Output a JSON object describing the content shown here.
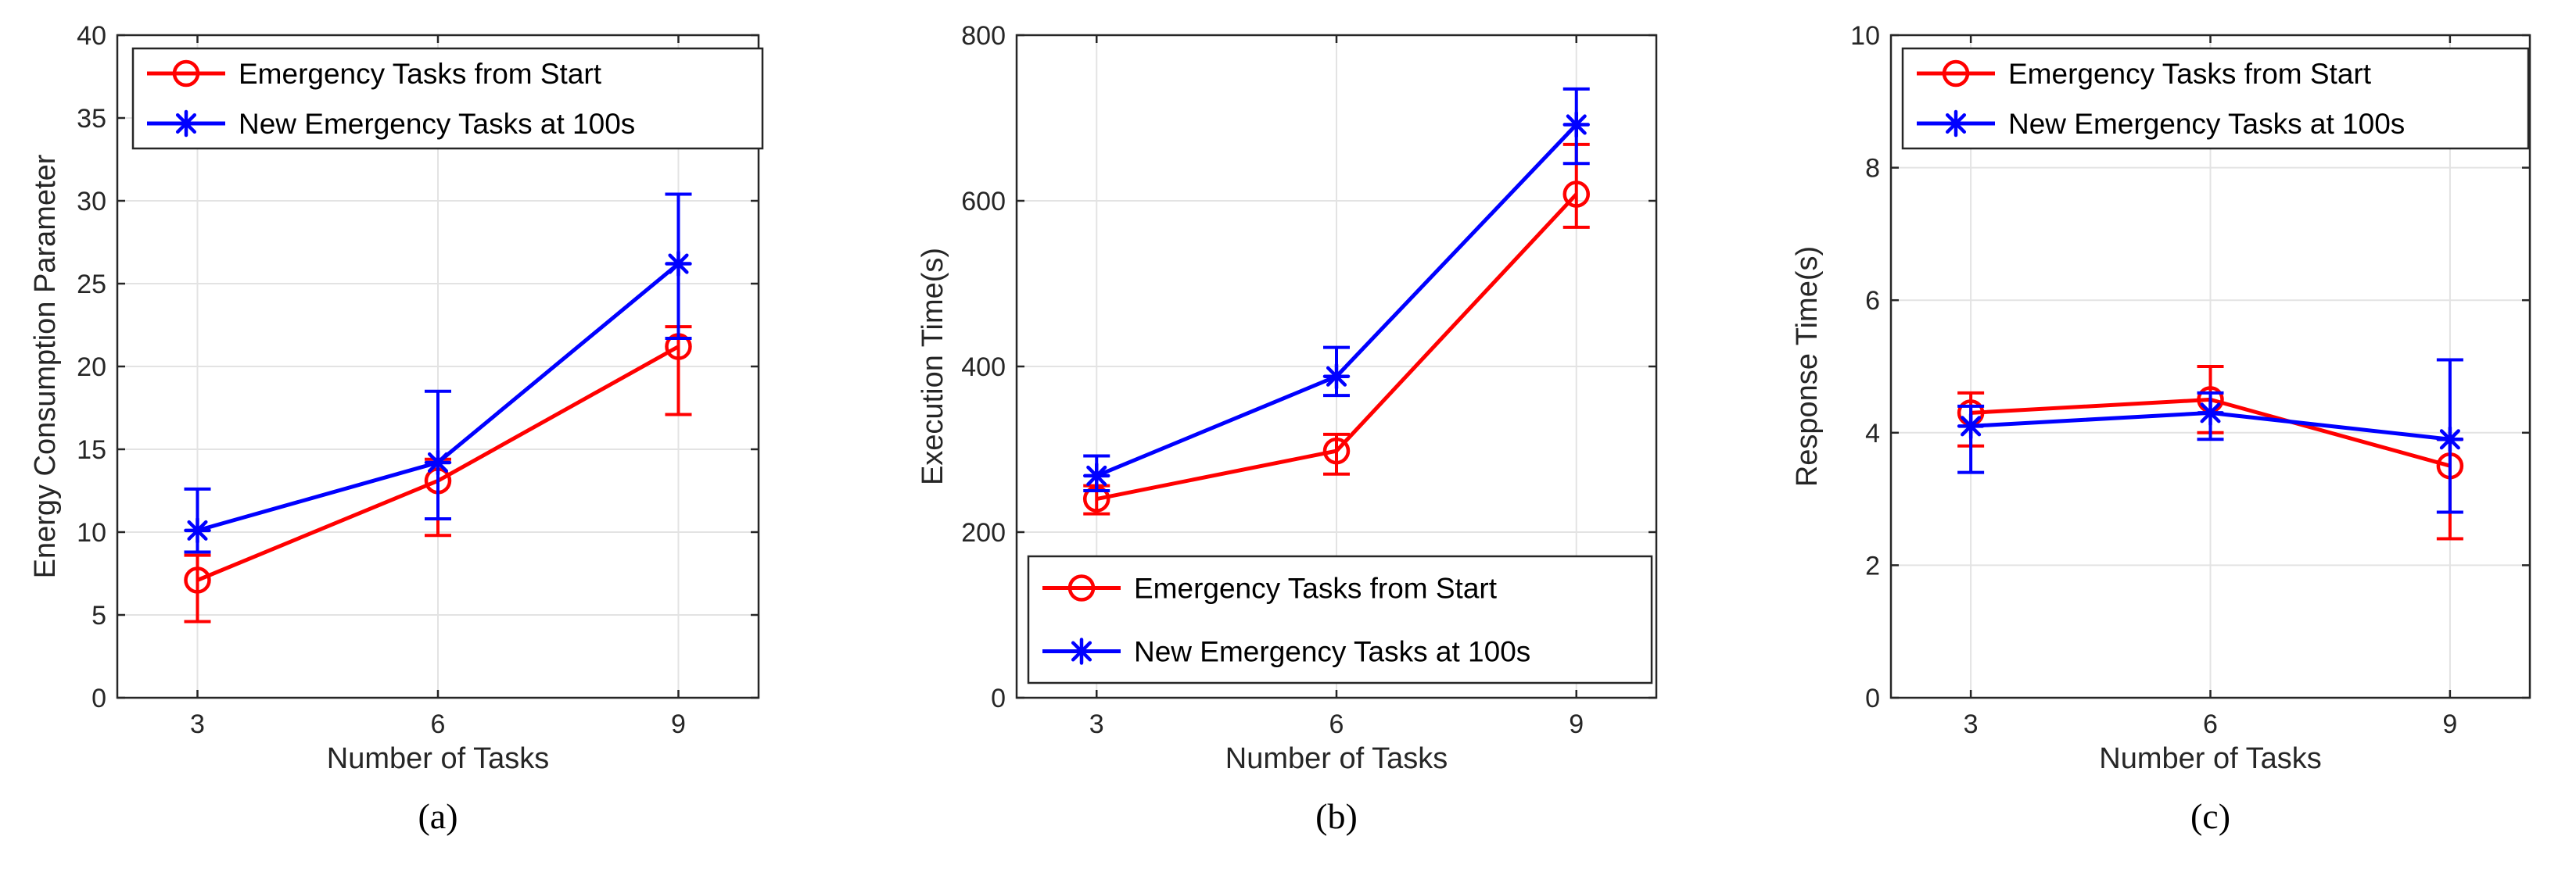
{
  "colors": {
    "series1": "#ff0000",
    "series2": "#0000ff",
    "grid": "#e3e3e3",
    "axis": "#262626"
  },
  "chart_data": [
    {
      "type": "line",
      "caption": "(a)",
      "xlabel": "Number of Tasks",
      "ylabel": "Energy Consumption Parameter",
      "x": [
        3,
        6,
        9
      ],
      "xlim": [
        2,
        10
      ],
      "ylim": [
        0,
        40
      ],
      "xticks": [
        3,
        6,
        9
      ],
      "yticks": [
        0,
        5,
        10,
        15,
        20,
        25,
        30,
        35,
        40
      ],
      "grid": true,
      "legend_position": "top-left",
      "series": [
        {
          "name": "Emergency Tasks from Start",
          "marker": "circle",
          "color": "#ff0000",
          "values": [
            7.1,
            13.1,
            21.2
          ],
          "err_low": [
            4.6,
            9.8,
            17.1
          ],
          "err_high": [
            8.6,
            14.4,
            22.4
          ]
        },
        {
          "name": "New Emergency Tasks at 100s",
          "marker": "asterisk",
          "color": "#0000ff",
          "values": [
            10.1,
            14.2,
            26.2
          ],
          "err_low": [
            8.8,
            10.8,
            21.7
          ],
          "err_high": [
            12.6,
            18.5,
            30.4
          ]
        }
      ]
    },
    {
      "type": "line",
      "caption": "(b)",
      "xlabel": "Number of Tasks",
      "ylabel": "Execution Time(s)",
      "x": [
        3,
        6,
        9
      ],
      "xlim": [
        2,
        10
      ],
      "ylim": [
        0,
        800
      ],
      "xticks": [
        3,
        6,
        9
      ],
      "yticks": [
        0,
        200,
        400,
        600,
        800
      ],
      "grid": true,
      "legend_position": "bottom-right",
      "series": [
        {
          "name": "Emergency Tasks from Start",
          "marker": "circle",
          "color": "#ff0000",
          "values": [
            240,
            298,
            608
          ],
          "err_low": [
            222,
            270,
            568
          ],
          "err_high": [
            256,
            318,
            668
          ]
        },
        {
          "name": "New Emergency Tasks at 100s",
          "marker": "asterisk",
          "color": "#0000ff",
          "values": [
            268,
            388,
            692
          ],
          "err_low": [
            250,
            365,
            645
          ],
          "err_high": [
            292,
            423,
            735
          ]
        }
      ]
    },
    {
      "type": "line",
      "caption": "(c)",
      "xlabel": "Number of Tasks",
      "ylabel": "Response Time(s)",
      "x": [
        3,
        6,
        9
      ],
      "xlim": [
        2,
        10
      ],
      "ylim": [
        0,
        10
      ],
      "xticks": [
        3,
        6,
        9
      ],
      "yticks": [
        0,
        2,
        4,
        6,
        8,
        10
      ],
      "grid": true,
      "legend_position": "top-left",
      "series": [
        {
          "name": "Emergency Tasks from Start",
          "marker": "circle",
          "color": "#ff0000",
          "values": [
            4.3,
            4.5,
            3.5
          ],
          "err_low": [
            3.8,
            4.0,
            2.4
          ],
          "err_high": [
            4.6,
            5.0,
            3.9
          ]
        },
        {
          "name": "New Emergency Tasks at 100s",
          "marker": "asterisk",
          "color": "#0000ff",
          "values": [
            4.1,
            4.3,
            3.9
          ],
          "err_low": [
            3.4,
            3.9,
            2.8
          ],
          "err_high": [
            4.4,
            4.6,
            5.1
          ]
        }
      ]
    }
  ]
}
